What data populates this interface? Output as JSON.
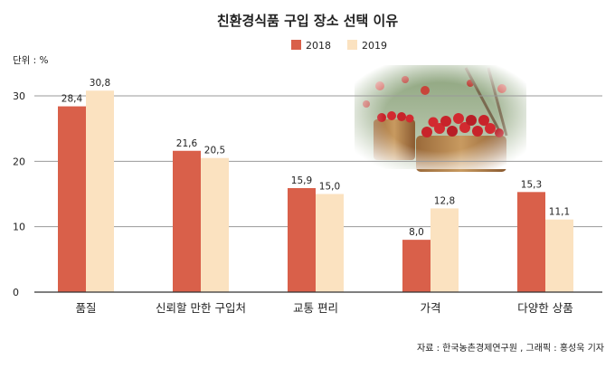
{
  "chart_data": {
    "type": "bar",
    "title": "친환경식품 구입 장소 선택 이유",
    "unit_label": "단위 : %",
    "categories": [
      "품질",
      "신뢰할 만한 구입처",
      "교통 편리",
      "가격",
      "다양한 상품"
    ],
    "series": [
      {
        "name": "2018",
        "values": [
          28.4,
          21.6,
          15.9,
          8.0,
          15.3
        ],
        "labels": [
          "28,4",
          "21,6",
          "15,9",
          "8,0",
          "15,3"
        ],
        "color": "#d9604a"
      },
      {
        "name": "2019",
        "values": [
          30.8,
          20.5,
          15.0,
          12.8,
          11.1
        ],
        "labels": [
          "30,8",
          "20,5",
          "15,0",
          "12,8",
          "11,1"
        ],
        "color": "#fbe2c0"
      }
    ],
    "yticks": [
      0,
      10,
      20,
      30
    ],
    "ylim": [
      0,
      30
    ],
    "grid": true,
    "legend_position": "top-center",
    "source": "자료 : 한국농촌경제연구원 , 그래픽 : 홍성욱 기자"
  }
}
